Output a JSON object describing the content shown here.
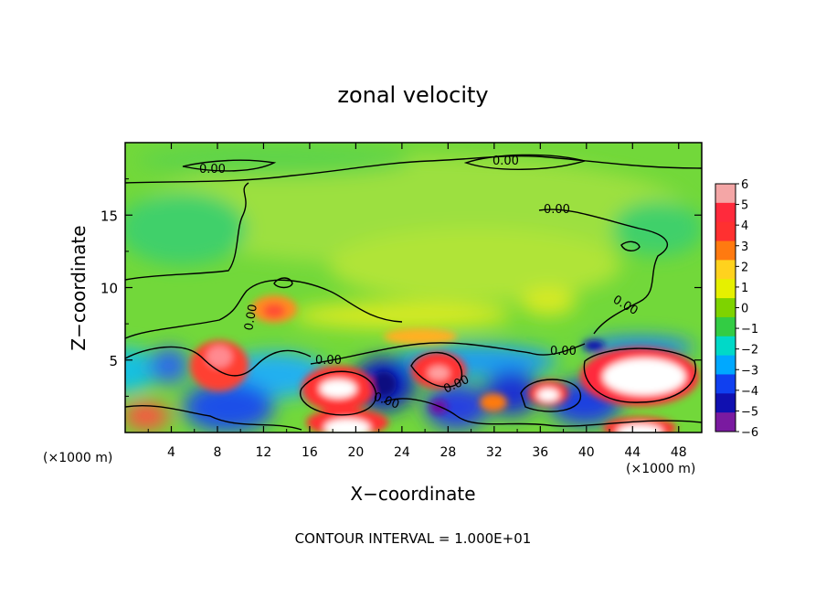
{
  "chart_data": {
    "type": "heatmap",
    "title": "zonal velocity",
    "xlabel": "X−coordinate",
    "ylabel": "Z−coordinate",
    "x_unit_left": "(×1000 m)",
    "x_unit_right": "(×1000 m)",
    "footer": "CONTOUR INTERVAL = 1.000E+01",
    "xlim": [
      0,
      50
    ],
    "ylim": [
      0,
      20
    ],
    "x_ticks": [
      "4",
      "8",
      "12",
      "16",
      "20",
      "24",
      "28",
      "32",
      "36",
      "40",
      "44",
      "48"
    ],
    "y_ticks": [
      "5",
      "10",
      "15"
    ],
    "colorbar": {
      "range": [
        -6,
        6
      ],
      "labels": [
        "6",
        "5",
        "4",
        "3",
        "2",
        "1",
        "0",
        "−1",
        "−2",
        "−3",
        "−4",
        "−5",
        "−6"
      ],
      "colors": [
        "#f4a6a6",
        "#ff2a3c",
        "#ff3030",
        "#ff7a10",
        "#ffd21e",
        "#e6f000",
        "#7ed300",
        "#33cc44",
        "#00d9c8",
        "#00a8ff",
        "#1040f0",
        "#1010b0",
        "#7a1aa0"
      ]
    },
    "contour_labels": [
      "0.00",
      "0.00",
      "0.00",
      "0.00",
      "0.00",
      "0.00",
      "0.00",
      "0.00",
      "0.00"
    ],
    "regions": [
      {
        "x": 25,
        "z": 16.5,
        "v": 0.4
      },
      {
        "x": 22,
        "z": 12.5,
        "v": 1.0
      },
      {
        "x": 6,
        "z": 11,
        "v": -0.2
      },
      {
        "x": 12.5,
        "z": 8.3,
        "v": 3.0
      },
      {
        "x": 7,
        "z": 5,
        "v": 4.5
      },
      {
        "x": 2,
        "z": 3,
        "v": -3
      },
      {
        "x": 18,
        "z": 3,
        "v": 5.5
      },
      {
        "x": 23,
        "z": 4.5,
        "v": -5
      },
      {
        "x": 27.5,
        "z": 4.5,
        "v": 4.5
      },
      {
        "x": 31,
        "z": 2,
        "v": -4
      },
      {
        "x": 37,
        "z": 2.5,
        "v": 5.5
      },
      {
        "x": 44,
        "z": 4,
        "v": 6
      },
      {
        "x": 30,
        "z": 7.5,
        "v": 2
      }
    ]
  }
}
